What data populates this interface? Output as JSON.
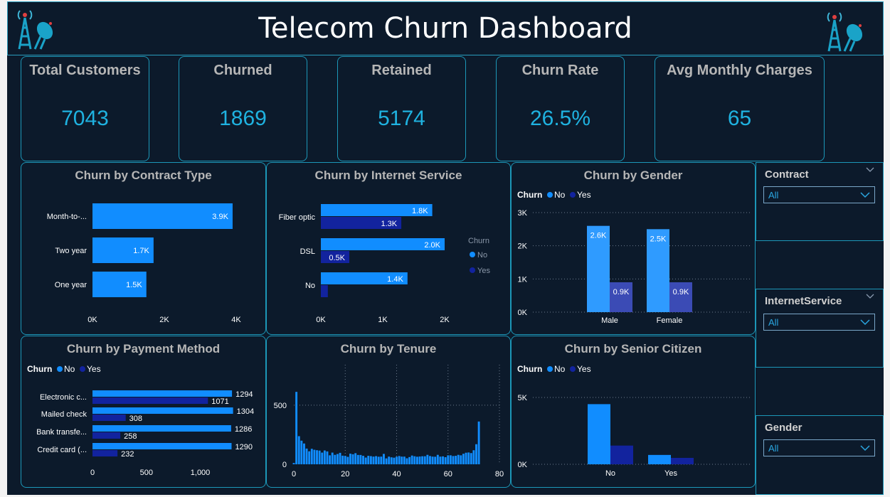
{
  "header": {
    "title": "Telecom Churn Dashboard",
    "left_icon": "radio-tower-icon",
    "right_icon": "radio-tower-icon"
  },
  "colors": {
    "background": "#0c1a2b",
    "border": "#1c97b8",
    "kpi_value": "#1fb2e0",
    "no": "#118dff",
    "yes": "#12239e",
    "no_gender": "#2f9bff",
    "yes_gender": "#3b4bb5"
  },
  "kpis": [
    {
      "title": "Total Customers",
      "value": "7043"
    },
    {
      "title": "Churned",
      "value": "1869"
    },
    {
      "title": "Retained",
      "value": "5174"
    },
    {
      "title": "Churn Rate",
      "value": "26.5%"
    },
    {
      "title": "Avg Monthly Charges",
      "value": "65"
    }
  ],
  "slicers": [
    {
      "title": "Contract",
      "value": "All"
    },
    {
      "title": "InternetService",
      "value": "All"
    },
    {
      "title": "Gender",
      "value": "All"
    }
  ],
  "legend": {
    "title": "Churn",
    "no": "No",
    "yes": "Yes"
  },
  "chart_data": [
    {
      "id": "contract",
      "type": "bar",
      "orientation": "horizontal",
      "title": "Churn by Contract Type",
      "categories": [
        "Month-to-...",
        "Two year",
        "One year"
      ],
      "values": [
        3900,
        1700,
        1500
      ],
      "data_labels": [
        "3.9K",
        "1.7K",
        "1.5K"
      ],
      "xticks": [
        "0K",
        "2K",
        "4K"
      ],
      "xlim": [
        0,
        4000
      ]
    },
    {
      "id": "internet",
      "type": "bar",
      "orientation": "horizontal",
      "title": "Churn by Internet Service",
      "categories": [
        "Fiber optic",
        "DSL",
        "No"
      ],
      "series": [
        {
          "name": "No",
          "values": [
            1800,
            2000,
            1400
          ],
          "labels": [
            "1.8K",
            "2.0K",
            "1.4K"
          ]
        },
        {
          "name": "Yes",
          "values": [
            1300,
            460,
            113
          ],
          "labels": [
            "1.3K",
            "0.5K",
            ""
          ]
        }
      ],
      "xticks": [
        "0K",
        "1K",
        "2K"
      ],
      "xlim": [
        0,
        2000
      ],
      "legend_position": "right"
    },
    {
      "id": "gender",
      "type": "bar",
      "orientation": "vertical",
      "title": "Churn by Gender",
      "categories": [
        "Male",
        "Female"
      ],
      "series": [
        {
          "name": "No",
          "values": [
            2600,
            2500
          ],
          "labels": [
            "2.6K",
            "2.5K"
          ]
        },
        {
          "name": "Yes",
          "values": [
            900,
            900
          ],
          "labels": [
            "0.9K",
            "0.9K"
          ]
        }
      ],
      "yticks": [
        "0K",
        "1K",
        "2K",
        "3K"
      ],
      "ylim": [
        0,
        3000
      ],
      "legend_position": "top-left",
      "grid": true
    },
    {
      "id": "payment",
      "type": "bar",
      "orientation": "horizontal",
      "title": "Churn by Payment Method",
      "categories": [
        "Electronic c...",
        "Mailed check",
        "Bank transfe...",
        "Credit card (..."
      ],
      "series": [
        {
          "name": "No",
          "values": [
            1294,
            1304,
            1286,
            1290
          ],
          "labels": [
            "1294",
            "1304",
            "1286",
            "1290"
          ]
        },
        {
          "name": "Yes",
          "values": [
            1071,
            308,
            258,
            232
          ],
          "labels": [
            "1071",
            "308",
            "258",
            "232"
          ]
        }
      ],
      "xticks": [
        "0",
        "500",
        "1,000"
      ],
      "xlim": [
        0,
        1300
      ],
      "legend_position": "top-left"
    },
    {
      "id": "tenure",
      "type": "bar",
      "orientation": "vertical",
      "title": "Churn by Tenure",
      "x": [
        0,
        1,
        2,
        3,
        4,
        5,
        6,
        7,
        8,
        9,
        10,
        11,
        12,
        13,
        14,
        15,
        16,
        17,
        18,
        19,
        20,
        21,
        22,
        23,
        24,
        25,
        26,
        27,
        28,
        29,
        30,
        31,
        32,
        33,
        34,
        35,
        36,
        37,
        38,
        39,
        40,
        41,
        42,
        43,
        44,
        45,
        46,
        47,
        48,
        49,
        50,
        51,
        52,
        53,
        54,
        55,
        56,
        57,
        58,
        59,
        60,
        61,
        62,
        63,
        64,
        65,
        66,
        67,
        68,
        69,
        70,
        71,
        72
      ],
      "values": [
        11,
        613,
        238,
        200,
        176,
        133,
        110,
        131,
        123,
        119,
        116,
        99,
        117,
        109,
        76,
        99,
        80,
        87,
        97,
        73,
        71,
        63,
        90,
        85,
        94,
        79,
        79,
        72,
        57,
        72,
        69,
        65,
        69,
        64,
        65,
        88,
        50,
        65,
        59,
        56,
        64,
        70,
        65,
        65,
        51,
        61,
        74,
        68,
        64,
        66,
        68,
        68,
        80,
        70,
        65,
        64,
        80,
        65,
        67,
        60,
        76,
        76,
        70,
        72,
        80,
        76,
        89,
        98,
        100,
        95,
        119,
        170,
        362
      ],
      "xticks": [
        "0",
        "20",
        "40",
        "60",
        "80"
      ],
      "yticks": [
        "0",
        "500"
      ],
      "xlim": [
        0,
        80
      ],
      "ylim": [
        0,
        650
      ]
    },
    {
      "id": "senior",
      "type": "bar",
      "orientation": "vertical",
      "title": "Churn by Senior Citizen",
      "categories": [
        "No",
        "Yes"
      ],
      "series": [
        {
          "name": "No",
          "values": [
            4500,
            700
          ]
        },
        {
          "name": "Yes",
          "values": [
            1400,
            480
          ]
        }
      ],
      "yticks": [
        "0K",
        "5K"
      ],
      "ylim": [
        0,
        5000
      ],
      "legend_position": "top-left",
      "grid": true
    }
  ]
}
